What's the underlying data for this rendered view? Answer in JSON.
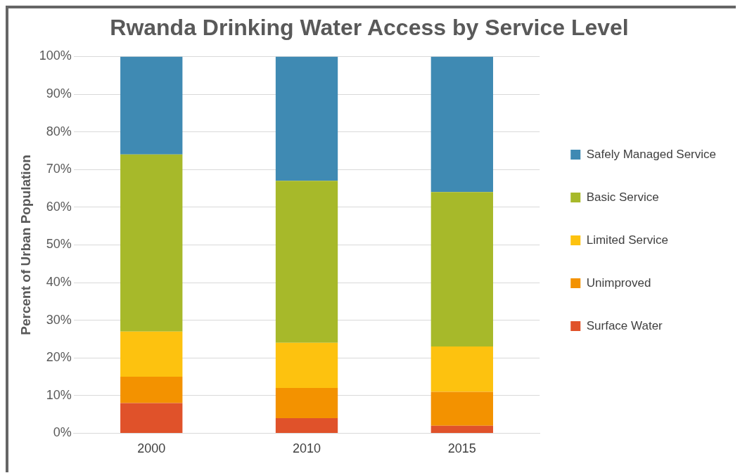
{
  "chart_data": {
    "type": "bar",
    "title": "Rwanda Drinking Water Access by Service Level",
    "ylabel": "Percent of Urban Population",
    "categories": [
      "2000",
      "2010",
      "2015"
    ],
    "stacked": true,
    "series": [
      {
        "name": "Surface Water",
        "color": "#e0522a",
        "values": [
          8,
          4,
          2
        ]
      },
      {
        "name": "Unimproved",
        "color": "#f39200",
        "values": [
          7,
          8,
          9
        ]
      },
      {
        "name": "Limited Service",
        "color": "#fdc20f",
        "values": [
          12,
          12,
          12
        ]
      },
      {
        "name": "Basic Service",
        "color": "#a7b92a",
        "values": [
          47,
          43,
          41
        ]
      },
      {
        "name": "Safely Managed Service",
        "color": "#3f8ab3",
        "values": [
          26,
          33,
          36
        ]
      }
    ],
    "ylim": [
      0,
      100
    ],
    "yticks": [
      {
        "value": 0,
        "label": "0%"
      },
      {
        "value": 10,
        "label": "10%"
      },
      {
        "value": 20,
        "label": "20%"
      },
      {
        "value": 30,
        "label": "30%"
      },
      {
        "value": 40,
        "label": "40%"
      },
      {
        "value": 50,
        "label": "50%"
      },
      {
        "value": 60,
        "label": "60%"
      },
      {
        "value": 70,
        "label": "70%"
      },
      {
        "value": 80,
        "label": "80%"
      },
      {
        "value": 90,
        "label": "90%"
      },
      {
        "value": 100,
        "label": "100%"
      }
    ],
    "grid": "y",
    "legend": "right"
  }
}
